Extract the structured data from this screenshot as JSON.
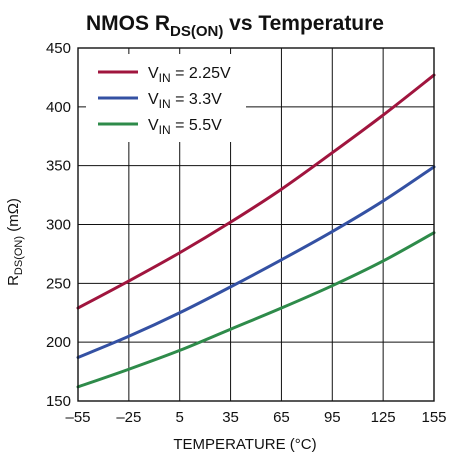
{
  "chart_data": {
    "type": "line",
    "title": {
      "main": "NMOS R",
      "sub": "DS(ON)",
      "rest": " vs Temperature"
    },
    "xlabel": "TEMPERATURE (°C)",
    "ylabel": {
      "main": "R",
      "sub": "DS(ON)",
      "rest": " (mΩ)"
    },
    "xlim": [
      -55,
      155
    ],
    "ylim": [
      150,
      450
    ],
    "xticks": [
      -55,
      -25,
      5,
      35,
      65,
      95,
      125,
      155
    ],
    "xtick_labels": [
      "–55",
      "–25",
      "5",
      "35",
      "65",
      "95",
      "125",
      "155"
    ],
    "yticks": [
      150,
      200,
      250,
      300,
      350,
      400,
      450
    ],
    "ytick_labels": [
      "150",
      "200",
      "250",
      "300",
      "350",
      "400",
      "450"
    ],
    "grid": true,
    "legend_position": "top-left",
    "x": [
      -55,
      -25,
      5,
      35,
      65,
      95,
      125,
      155
    ],
    "series": [
      {
        "name": "V",
        "name_sub": "IN",
        "name_rest": " = 2.25V",
        "color": "#a0153e",
        "values": [
          229,
          252,
          276,
          302,
          330,
          361,
          393,
          427
        ]
      },
      {
        "name": "V",
        "name_sub": "IN",
        "name_rest": " = 3.3V",
        "color": "#3451a3",
        "values": [
          187,
          205,
          225,
          247,
          270,
          294,
          320,
          349
        ]
      },
      {
        "name": "V",
        "name_sub": "IN",
        "name_rest": " = 5.5V",
        "color": "#2e8b4a",
        "values": [
          162,
          177,
          193,
          211,
          229,
          248,
          269,
          293
        ]
      }
    ]
  }
}
